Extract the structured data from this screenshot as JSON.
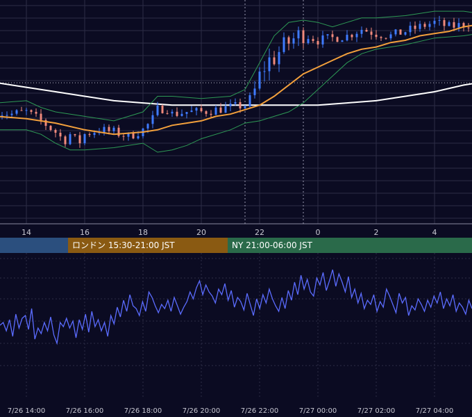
{
  "colors": {
    "background": "#0b0b22",
    "grid": "#2c2c46",
    "up": "#3f7bff",
    "down": "#f08a7c",
    "sma_short": "#f3a03c",
    "sma_long": "#ffffff",
    "bollinger": "#2e9a55",
    "oscillator": "#5b6cff",
    "axis_text": "#c8c8d2"
  },
  "sessions": [
    {
      "label": "",
      "color": "#2b4f7e"
    },
    {
      "label": "ロンドン 15:30-21:00 JST",
      "color": "#8a5a12"
    },
    {
      "label": "NY 21:00-06:00 JST",
      "color": "#2a6a4a"
    }
  ],
  "chart_data": [
    {
      "type": "candlestick",
      "x_tick_labels": [
        "14",
        "16",
        "18",
        "20",
        "22",
        "0",
        "2",
        "4"
      ],
      "x_range_hours": [
        13.0,
        29.5
      ],
      "candle_interval_min": 10,
      "y_range": [
        0,
        100
      ],
      "grid": true,
      "reference_line_y": 63,
      "vertical_markers_hours": [
        21.5,
        23.5
      ],
      "series": [
        {
          "name": "",
          "kind": "ohlc_path",
          "values": [
            [
              13.0,
              50
            ],
            [
              13.5,
              49
            ],
            [
              14.0,
              50
            ],
            [
              14.5,
              46
            ],
            [
              15.0,
              41
            ],
            [
              15.3,
              37
            ],
            [
              15.5,
              40
            ],
            [
              15.8,
              36
            ],
            [
              16.0,
              40
            ],
            [
              16.5,
              42
            ],
            [
              17.0,
              41
            ],
            [
              17.5,
              39
            ],
            [
              18.0,
              42
            ],
            [
              18.3,
              46
            ],
            [
              18.5,
              51
            ],
            [
              18.8,
              52
            ],
            [
              19.0,
              49
            ],
            [
              19.5,
              50
            ],
            [
              20.0,
              50
            ],
            [
              20.5,
              51
            ],
            [
              21.0,
              52
            ],
            [
              21.5,
              53
            ],
            [
              21.8,
              58
            ],
            [
              22.0,
              66
            ],
            [
              22.3,
              73
            ],
            [
              22.5,
              74
            ],
            [
              22.8,
              79
            ],
            [
              23.0,
              81
            ],
            [
              23.3,
              84
            ],
            [
              23.5,
              85
            ],
            [
              23.8,
              83
            ],
            [
              24.0,
              82
            ],
            [
              24.5,
              83
            ],
            [
              25.0,
              84
            ],
            [
              25.5,
              87
            ],
            [
              26.0,
              85
            ],
            [
              26.5,
              84
            ],
            [
              27.0,
              86
            ],
            [
              27.5,
              88
            ],
            [
              28.0,
              90
            ],
            [
              28.5,
              88
            ],
            [
              29.0,
              89
            ],
            [
              29.5,
              90
            ]
          ]
        },
        {
          "name": "",
          "kind": "line",
          "values": [
            [
              13.0,
              48
            ],
            [
              14.0,
              47
            ],
            [
              15.0,
              45
            ],
            [
              16.0,
              42
            ],
            [
              17.0,
              40
            ],
            [
              18.0,
              41
            ],
            [
              18.5,
              42
            ],
            [
              19.0,
              44
            ],
            [
              19.5,
              45
            ],
            [
              20.0,
              46
            ],
            [
              20.5,
              48
            ],
            [
              21.0,
              49
            ],
            [
              21.5,
              51
            ],
            [
              22.0,
              53
            ],
            [
              22.5,
              57
            ],
            [
              23.0,
              62
            ],
            [
              23.5,
              67
            ],
            [
              24.0,
              70
            ],
            [
              24.5,
              73
            ],
            [
              25.0,
              76
            ],
            [
              25.5,
              78
            ],
            [
              26.0,
              79
            ],
            [
              26.5,
              81
            ],
            [
              27.0,
              82
            ],
            [
              27.5,
              84
            ],
            [
              28.0,
              85
            ],
            [
              28.5,
              86
            ],
            [
              29.0,
              88
            ],
            [
              29.5,
              89
            ]
          ]
        },
        {
          "name": "",
          "kind": "line",
          "values": [
            [
              13.0,
              63
            ],
            [
              14.0,
              61
            ],
            [
              15.0,
              59
            ],
            [
              16.0,
              57
            ],
            [
              17.0,
              55
            ],
            [
              18.0,
              54
            ],
            [
              19.0,
              53
            ],
            [
              20.0,
              53
            ],
            [
              21.0,
              53
            ],
            [
              22.0,
              53
            ],
            [
              23.0,
              53
            ],
            [
              24.0,
              53
            ],
            [
              25.0,
              54
            ],
            [
              26.0,
              55
            ],
            [
              27.0,
              57
            ],
            [
              28.0,
              59
            ],
            [
              29.0,
              62
            ],
            [
              29.5,
              63
            ]
          ]
        },
        {
          "name": "",
          "kind": "band",
          "upper": [
            [
              13.0,
              54
            ],
            [
              14.0,
              55
            ],
            [
              14.5,
              52
            ],
            [
              15.0,
              50
            ],
            [
              16.0,
              48
            ],
            [
              17.0,
              46
            ],
            [
              18.0,
              50
            ],
            [
              18.5,
              57
            ],
            [
              19.0,
              57
            ],
            [
              20.0,
              56
            ],
            [
              21.0,
              57
            ],
            [
              21.5,
              60
            ],
            [
              22.0,
              72
            ],
            [
              22.5,
              84
            ],
            [
              23.0,
              90
            ],
            [
              23.5,
              91
            ],
            [
              24.0,
              90
            ],
            [
              24.5,
              88
            ],
            [
              25.0,
              90
            ],
            [
              25.5,
              92
            ],
            [
              26.0,
              92
            ],
            [
              27.0,
              93
            ],
            [
              28.0,
              95
            ],
            [
              29.0,
              95
            ],
            [
              29.5,
              94
            ]
          ]
        },
        {
          "name": "",
          "kind": "band",
          "lower": [
            [
              13.0,
              42
            ],
            [
              14.0,
              42
            ],
            [
              14.5,
              40
            ],
            [
              15.0,
              36
            ],
            [
              15.5,
              33
            ],
            [
              16.0,
              33
            ],
            [
              17.0,
              34
            ],
            [
              17.5,
              35
            ],
            [
              18.0,
              36
            ],
            [
              18.5,
              32
            ],
            [
              19.0,
              33
            ],
            [
              19.5,
              35
            ],
            [
              20.0,
              38
            ],
            [
              21.0,
              42
            ],
            [
              21.5,
              45
            ],
            [
              22.0,
              46
            ],
            [
              22.5,
              48
            ],
            [
              23.0,
              50
            ],
            [
              23.5,
              54
            ],
            [
              24.0,
              60
            ],
            [
              24.5,
              66
            ],
            [
              25.0,
              72
            ],
            [
              25.5,
              76
            ],
            [
              26.0,
              78
            ],
            [
              27.0,
              80
            ],
            [
              28.0,
              83
            ],
            [
              29.0,
              84
            ],
            [
              29.5,
              85
            ]
          ]
        }
      ]
    },
    {
      "type": "line",
      "x_tick_labels": [
        "7/26 14:00",
        "7/26 16:00",
        "7/26 18:00",
        "7/26 20:00",
        "7/26 22:00",
        "7/27 00:00",
        "7/27 02:00",
        "7/27 04:00"
      ],
      "y_range": [
        0,
        100
      ],
      "grid": true,
      "series": [
        {
          "name": "",
          "values": [
            48,
            50,
            44,
            52,
            40,
            56,
            46,
            53,
            55,
            45,
            60,
            38,
            46,
            42,
            50,
            44,
            54,
            41,
            35,
            50,
            47,
            53,
            46,
            51,
            39,
            52,
            45,
            56,
            43,
            58,
            47,
            52,
            44,
            50,
            40,
            55,
            49,
            61,
            54,
            66,
            58,
            70,
            62,
            60,
            55,
            65,
            58,
            72,
            68,
            62,
            57,
            63,
            60,
            66,
            58,
            68,
            62,
            56,
            61,
            65,
            72,
            67,
            75,
            80,
            70,
            77,
            72,
            69,
            64,
            74,
            70,
            78,
            66,
            73,
            61,
            68,
            65,
            59,
            71,
            63,
            55,
            67,
            60,
            70,
            64,
            74,
            67,
            62,
            58,
            68,
            60,
            73,
            66,
            79,
            70,
            84,
            74,
            81,
            72,
            69,
            82,
            77,
            86,
            73,
            80,
            88,
            76,
            85,
            79,
            72,
            83,
            68,
            74,
            64,
            71,
            60,
            66,
            63,
            70,
            58,
            65,
            61,
            74,
            69,
            63,
            57,
            71,
            64,
            68,
            55,
            62,
            59,
            67,
            63,
            58,
            66,
            61,
            69,
            64,
            72,
            60,
            67,
            62,
            70,
            58,
            64,
            61,
            56,
            66,
            60
          ]
        }
      ]
    }
  ]
}
